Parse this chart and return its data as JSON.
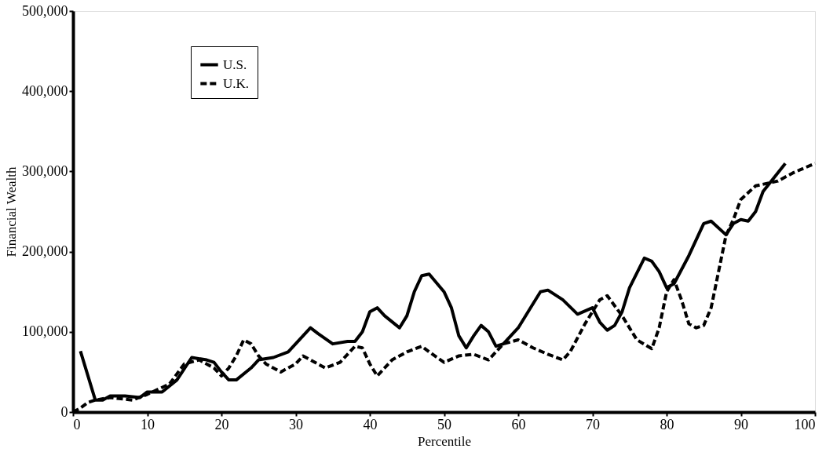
{
  "chart_data": {
    "type": "line",
    "xlabel": "Percentile",
    "ylabel": "Financial Wealth",
    "legend": "top left",
    "grid": false,
    "marker": "none",
    "xlim": [
      0,
      100
    ],
    "xticks": [
      0,
      10,
      20,
      30,
      40,
      50,
      60,
      70,
      80,
      90,
      100
    ],
    "ylim": [
      0,
      500000
    ],
    "yticks": [
      {
        "value": 0,
        "label": "0"
      },
      {
        "value": 100000,
        "label": "100,000"
      },
      {
        "value": 200000,
        "label": "200,000"
      },
      {
        "value": 300000,
        "label": "300,000"
      },
      {
        "value": 400000,
        "label": "400,000"
      },
      {
        "value": 500000,
        "label": "500,000"
      }
    ],
    "series": [
      {
        "name": "U.S.",
        "color": "#000000",
        "line_style": "solid",
        "x": [
          1,
          3,
          4,
          5,
          7,
          9,
          10,
          12,
          14,
          16,
          18,
          19,
          20,
          21,
          22,
          24,
          25,
          27,
          29,
          31,
          32,
          33,
          35,
          37,
          38,
          39,
          40,
          41,
          42,
          44,
          45,
          46,
          47,
          48,
          50,
          51,
          52,
          53,
          54,
          55,
          56,
          57,
          58,
          59,
          60,
          62,
          63,
          64,
          66,
          68,
          70,
          71,
          72,
          73,
          74,
          75,
          77,
          78,
          79,
          80,
          81,
          83,
          85,
          86,
          88,
          89,
          90,
          91,
          92,
          93,
          96
        ],
        "values": [
          76000,
          15000,
          15000,
          20000,
          20000,
          18000,
          25000,
          25000,
          40000,
          68000,
          65000,
          62000,
          50000,
          40000,
          40000,
          55000,
          65000,
          68000,
          75000,
          95000,
          105000,
          98000,
          85000,
          88000,
          88000,
          100000,
          125000,
          130000,
          120000,
          105000,
          120000,
          150000,
          170000,
          172000,
          150000,
          130000,
          95000,
          80000,
          95000,
          108000,
          100000,
          82000,
          85000,
          95000,
          105000,
          135000,
          150000,
          152000,
          140000,
          122000,
          130000,
          112000,
          102000,
          108000,
          125000,
          155000,
          192000,
          188000,
          175000,
          155000,
          160000,
          195000,
          235000,
          238000,
          221000,
          235000,
          240000,
          238000,
          250000,
          275000,
          310000
        ]
      },
      {
        "name": "U.K.",
        "color": "#000000",
        "line_style": "dashed",
        "x": [
          0,
          1,
          2,
          3,
          5,
          8,
          10,
          13,
          15,
          17,
          18,
          19,
          20,
          21,
          22,
          23,
          24,
          25,
          26,
          28,
          30,
          31,
          32,
          34,
          36,
          38,
          39,
          40,
          41,
          43,
          45,
          47,
          48,
          50,
          52,
          54,
          56,
          58,
          60,
          62,
          64,
          66,
          67,
          69,
          71,
          72,
          74,
          76,
          78,
          79,
          80,
          81,
          82,
          83,
          84,
          85,
          86,
          87,
          88,
          89,
          90,
          92,
          95,
          97,
          100
        ],
        "values": [
          0,
          5000,
          12000,
          15000,
          18000,
          15000,
          22000,
          35000,
          60000,
          65000,
          60000,
          55000,
          45000,
          55000,
          70000,
          90000,
          85000,
          70000,
          60000,
          50000,
          60000,
          70000,
          65000,
          55000,
          62000,
          82000,
          80000,
          60000,
          45000,
          65000,
          75000,
          82000,
          75000,
          62000,
          70000,
          72000,
          65000,
          85000,
          90000,
          80000,
          72000,
          65000,
          75000,
          110000,
          140000,
          145000,
          120000,
          90000,
          79000,
          105000,
          150000,
          165000,
          140000,
          110000,
          105000,
          108000,
          130000,
          175000,
          220000,
          240000,
          265000,
          282000,
          288000,
          298000,
          310000
        ]
      }
    ]
  }
}
